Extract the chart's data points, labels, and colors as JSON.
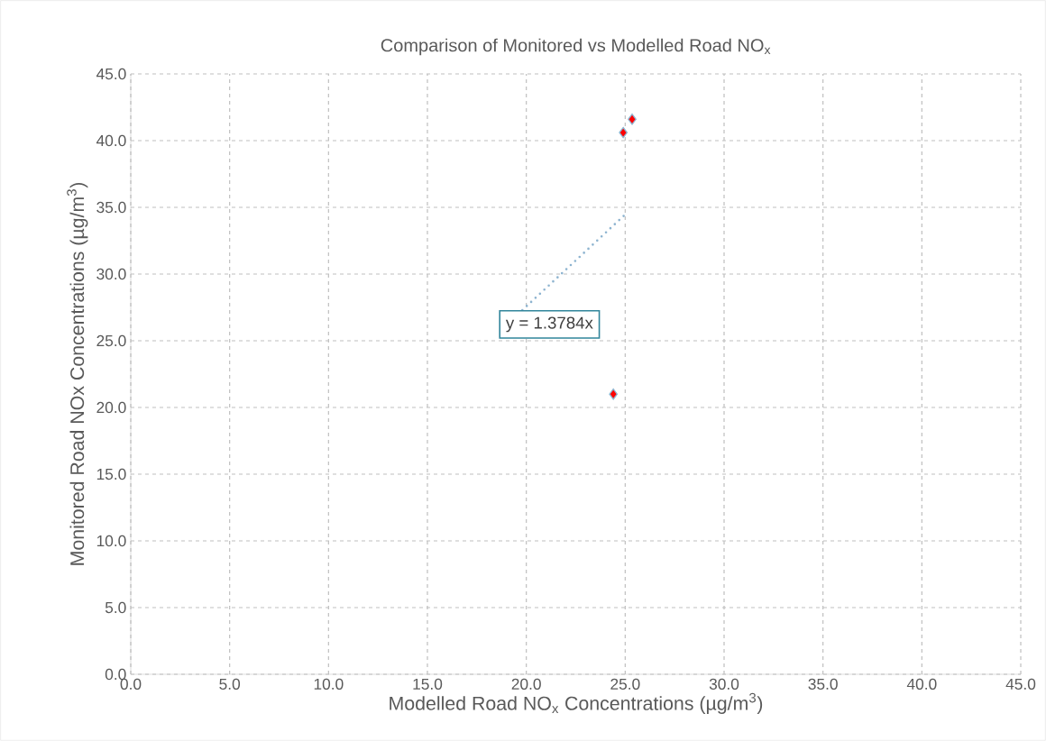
{
  "chart_data": {
    "type": "scatter",
    "title": "Comparison of Monitored vs Modelled Road NO$_{x}$",
    "xlabel": "Modelled Road NO$_{x}$ Concentrations (µg/m$^{3}$)",
    "ylabel": "Monitored Road NOx Concentrations (µg/m$^{3}$)",
    "annotations": [
      "y = 1.3784x"
    ],
    "series": [
      {
        "color": "#ff0000",
        "marker": "diamond",
        "x": [
          25.35,
          24.9,
          24.4
        ],
        "values": [
          41.6,
          40.6,
          21.0
        ]
      },
      {
        "type": "line",
        "color": "#8eb4d0",
        "line_style": "dotted",
        "marker": "none",
        "x": [
          19.8,
          25.1
        ],
        "values": [
          27.3,
          34.6
        ]
      }
    ],
    "xlim": [
      0,
      45
    ],
    "ylim": [
      0,
      45
    ],
    "xticks": [
      {
        "value": 0,
        "label": "0.0"
      },
      {
        "value": 5,
        "label": "5.0"
      },
      {
        "value": 10,
        "label": "10.0"
      },
      {
        "value": 15,
        "label": "15.0"
      },
      {
        "value": 20,
        "label": "20.0"
      },
      {
        "value": 25,
        "label": "25.0"
      },
      {
        "value": 30,
        "label": "30.0"
      },
      {
        "value": 35,
        "label": "35.0"
      },
      {
        "value": 40,
        "label": "40.0"
      },
      {
        "value": 45,
        "label": "45.0"
      }
    ],
    "yticks": [
      {
        "value": 0,
        "label": "0.0"
      },
      {
        "value": 5,
        "label": "5.0"
      },
      {
        "value": 10,
        "label": "10.0"
      },
      {
        "value": 15,
        "label": "15.0"
      },
      {
        "value": 20,
        "label": "20.0"
      },
      {
        "value": 25,
        "label": "25.0"
      },
      {
        "value": 30,
        "label": "30.0"
      },
      {
        "value": 35,
        "label": "35.0"
      },
      {
        "value": 40,
        "label": "40.0"
      },
      {
        "value": 45,
        "label": "45.0"
      }
    ],
    "grid": true
  }
}
